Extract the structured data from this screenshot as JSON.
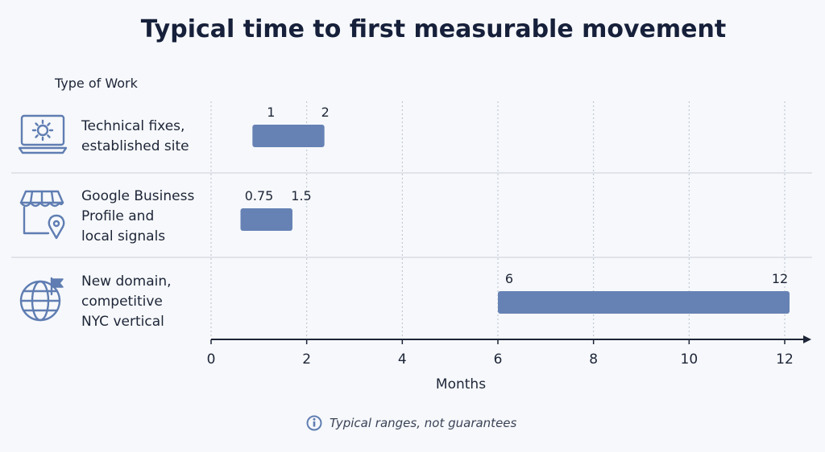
{
  "chart_data": {
    "type": "bar",
    "orientation": "horizontal-range",
    "title": "Typical time to first measurable movement",
    "ylabel": "Type of Work",
    "xlabel": "Months",
    "xlim": [
      0,
      12.5
    ],
    "xticks": [
      0,
      2,
      4,
      6,
      8,
      10,
      12
    ],
    "grid": true,
    "categories": [
      [
        "Technical fixes,",
        "established site"
      ],
      [
        "Google Business",
        "Profile and",
        "local signals"
      ],
      [
        "New domain,",
        "competitive",
        "NYC vertical"
      ]
    ],
    "ranges": [
      {
        "start": 1,
        "end": 2,
        "start_label": "1",
        "end_label": "2"
      },
      {
        "start": 0.75,
        "end": 1.5,
        "start_label": "0.75",
        "end_label": "1.5"
      },
      {
        "start": 6,
        "end": 12,
        "start_label": "6",
        "end_label": "12"
      }
    ],
    "icons": [
      "laptop-gear-icon",
      "storefront-location-icon",
      "globe-flag-icon"
    ],
    "bar_color": "#6682b5",
    "note": "Typical ranges, not guarantees",
    "note_icon": "info-icon"
  }
}
